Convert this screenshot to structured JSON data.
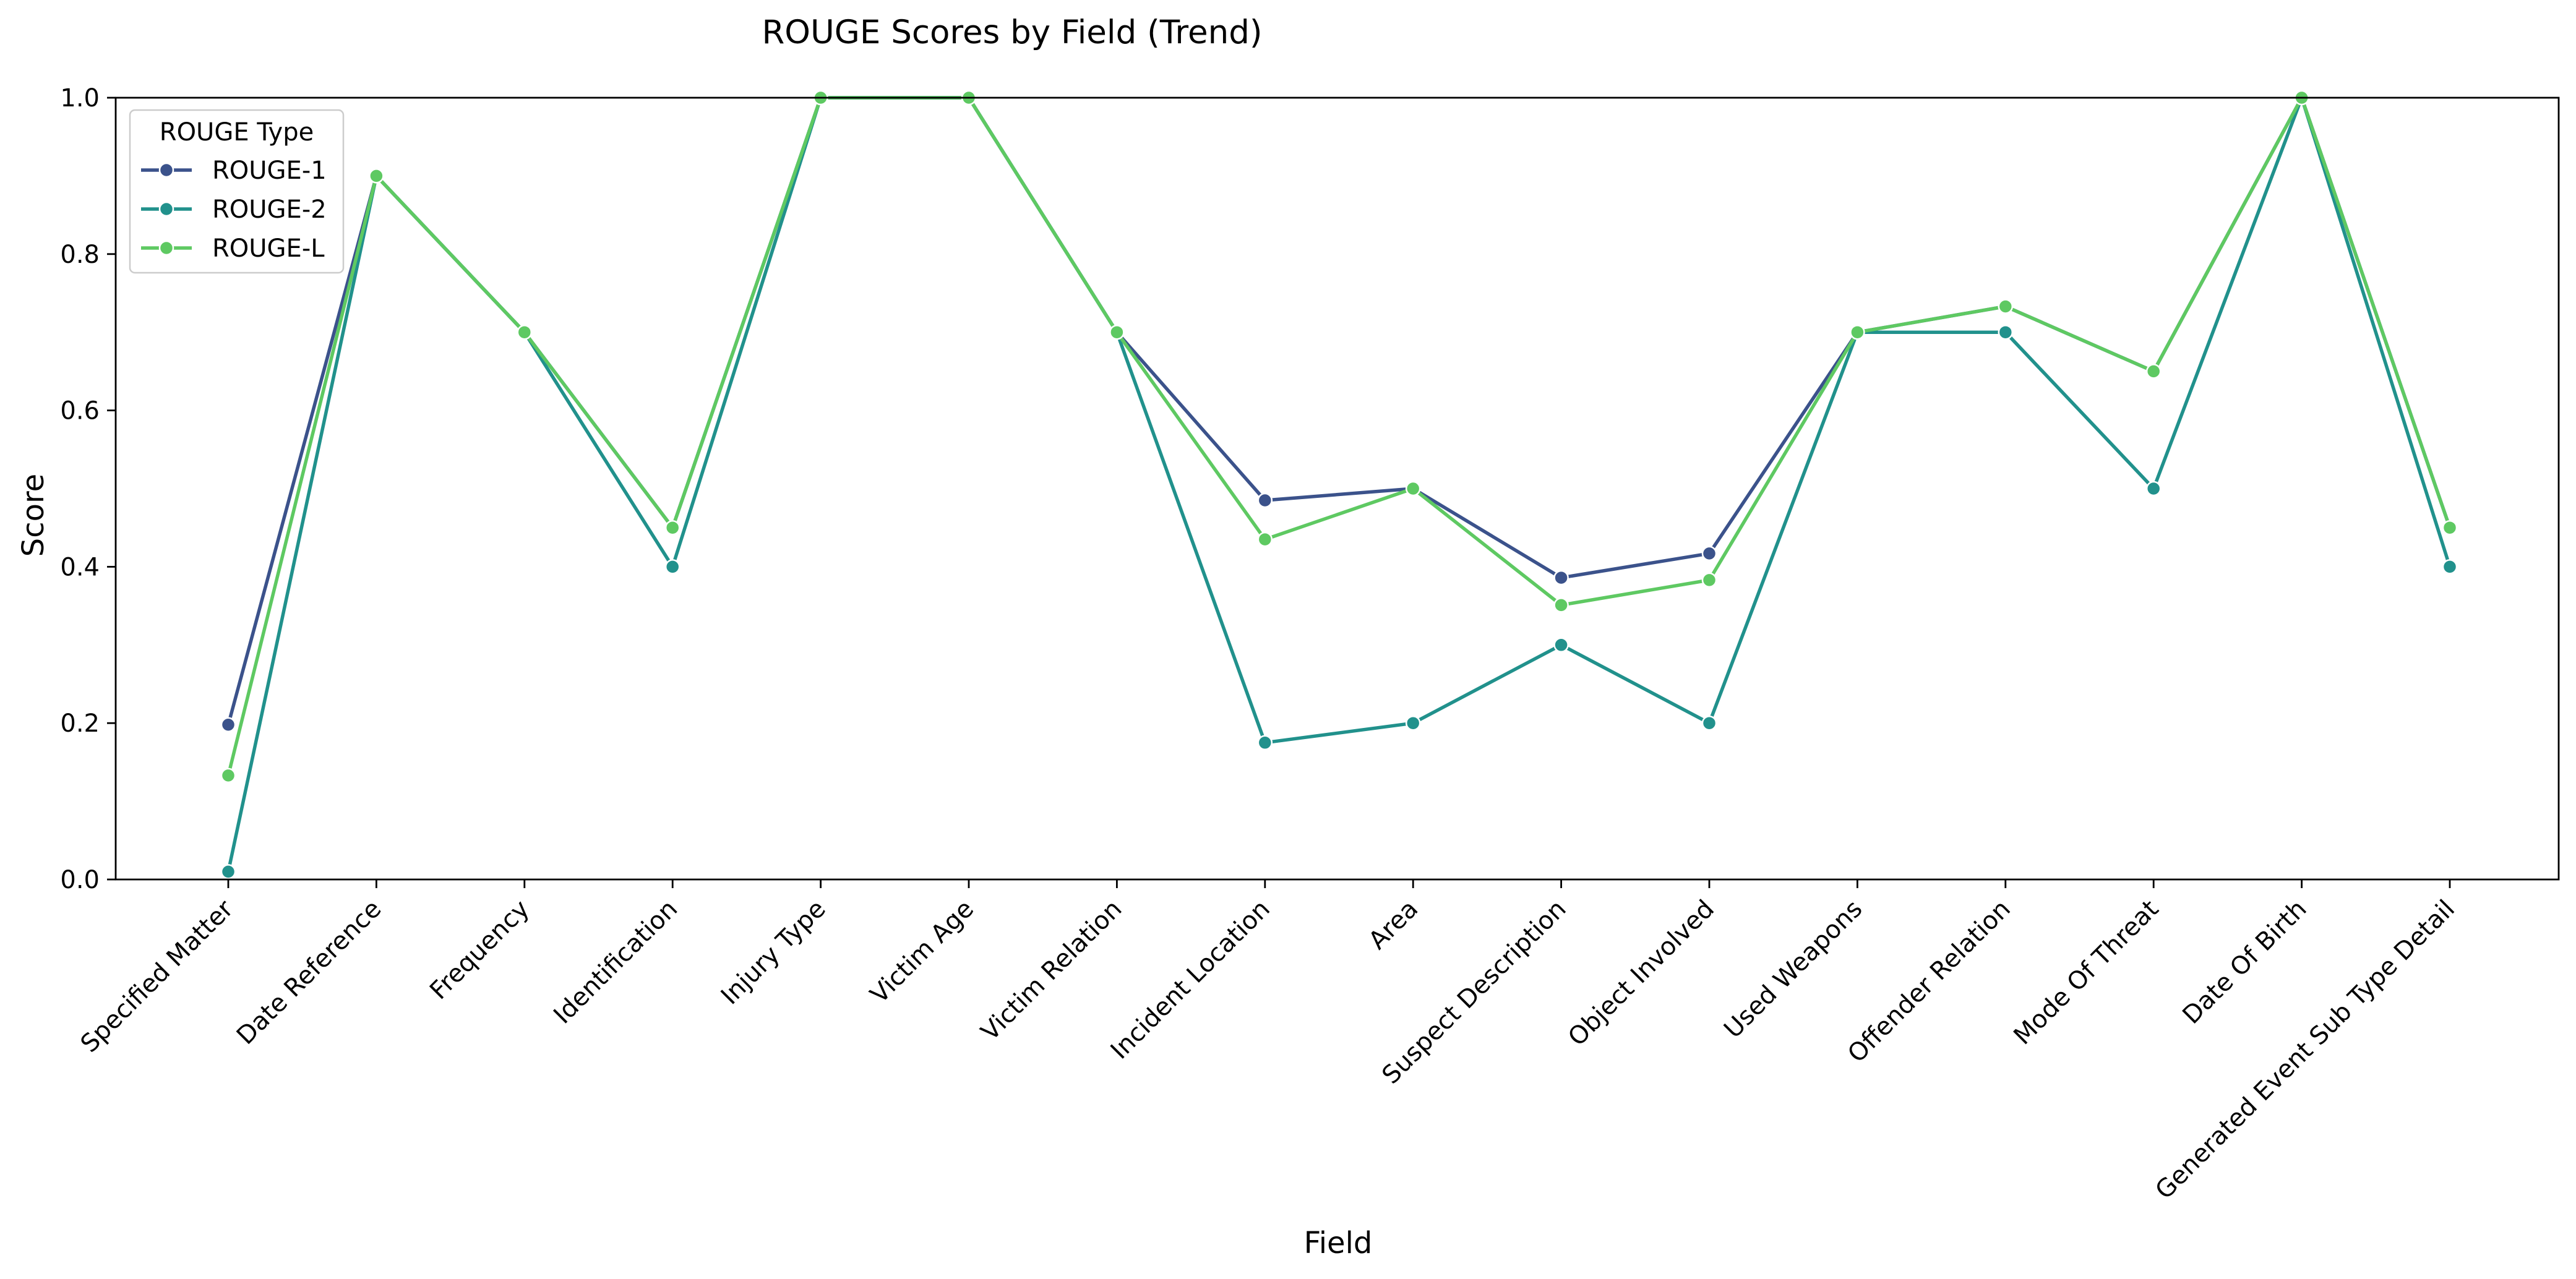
{
  "chart_data": {
    "type": "line",
    "title": "ROUGE Scores by Field (Trend)",
    "xlabel": "Field",
    "ylabel": "Score",
    "ylim": [
      0,
      1.0
    ],
    "yticks": [
      "0.0",
      "0.2",
      "0.4",
      "0.6",
      "0.8",
      "1.0"
    ],
    "grid": false,
    "legend": {
      "title": "ROUGE Type",
      "position": "top-left"
    },
    "categories": [
      "Specified Matter",
      "Date Reference",
      "Frequency",
      "Identification",
      "Injury Type",
      "Victim Age",
      "Victim Relation",
      "Incident Location",
      "Area",
      "Suspect Description",
      "Object Involved",
      "Used Weapons",
      "Offender Relation",
      "Mode Of Threat",
      "Date Of Birth",
      "Generated Event Sub Type Detail"
    ],
    "series": [
      {
        "name": "ROUGE-1",
        "color": "#3b528b",
        "values": [
          0.198,
          0.9,
          0.7,
          0.45,
          1.0,
          1.0,
          0.7,
          0.485,
          0.5,
          0.386,
          0.417,
          0.7,
          0.733,
          0.65,
          1.0,
          0.45
        ]
      },
      {
        "name": "ROUGE-2",
        "color": "#21918c",
        "values": [
          0.01,
          0.9,
          0.7,
          0.4,
          1.0,
          1.0,
          0.7,
          0.175,
          0.2,
          0.3,
          0.2,
          0.7,
          0.7,
          0.5,
          1.0,
          0.4
        ]
      },
      {
        "name": "ROUGE-L",
        "color": "#5ec962",
        "values": [
          0.133,
          0.9,
          0.7,
          0.45,
          1.0,
          1.0,
          0.7,
          0.435,
          0.5,
          0.351,
          0.383,
          0.7,
          0.733,
          0.65,
          1.0,
          0.45
        ]
      }
    ]
  }
}
